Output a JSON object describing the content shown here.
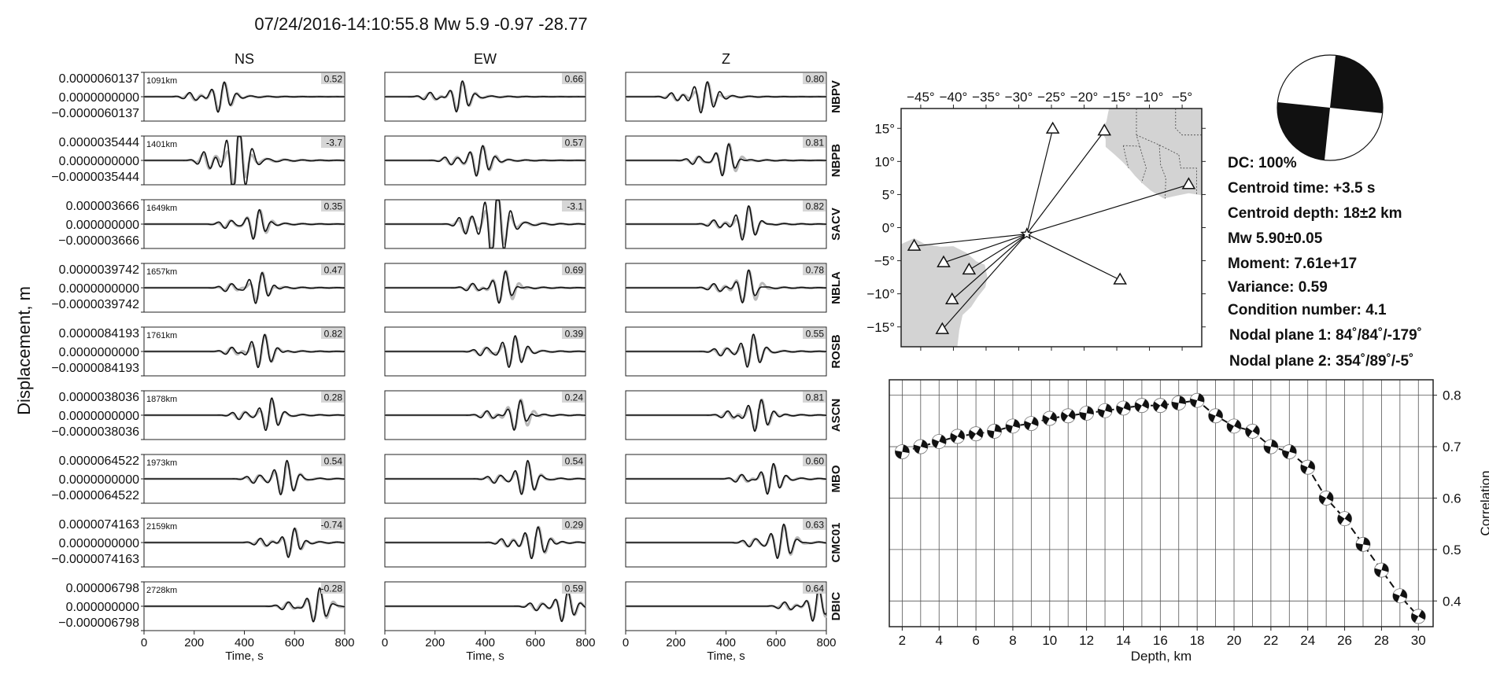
{
  "title": "07/24/2016-14:10:55.8 Mw 5.9 -0.97 -28.77",
  "waveforms": {
    "ylabel": "Displacement, m",
    "xlabel": "Time, s",
    "xlim": [
      0,
      800
    ],
    "xticks": [
      "0",
      "200",
      "400",
      "600",
      "800"
    ],
    "components": [
      "NS",
      "EW",
      "Z"
    ],
    "legend": "observed (gray) vs synthetic (black)",
    "stations": [
      {
        "name": "NBPV",
        "distance": "1091km",
        "yticks": [
          "0.0000060137",
          "0.0000000000",
          "−0.0000060137"
        ],
        "corr": [
          "0.52",
          "0.66",
          "0.80"
        ],
        "arrival_s": [
          310,
          300,
          315
        ]
      },
      {
        "name": "NBPB",
        "distance": "1401km",
        "yticks": [
          "0.0000035444",
          "0.0000000000",
          "−0.0000035444"
        ],
        "corr": [
          "-3.7",
          "0.57",
          "0.81"
        ],
        "arrival_s": [
          370,
          380,
          400
        ]
      },
      {
        "name": "SACV",
        "distance": "1649km",
        "yticks": [
          "0.000003666",
          "0.000000000",
          "−0.000003666"
        ],
        "corr": [
          "0.35",
          "-3.1",
          "0.82"
        ],
        "arrival_s": [
          450,
          440,
          480
        ]
      },
      {
        "name": "NBLA",
        "distance": "1657km",
        "yticks": [
          "0.0000039742",
          "0.0000000000",
          "−0.0000039742"
        ],
        "corr": [
          "0.47",
          "0.69",
          "0.78"
        ],
        "arrival_s": [
          460,
          470,
          480
        ]
      },
      {
        "name": "ROSB",
        "distance": "1761km",
        "yticks": [
          "0.0000084193",
          "0.0000000000",
          "−0.0000084193"
        ],
        "corr": [
          "0.82",
          "0.39",
          "0.55"
        ],
        "arrival_s": [
          470,
          510,
          500
        ]
      },
      {
        "name": "ASCN",
        "distance": "1878km",
        "yticks": [
          "0.0000038036",
          "0.0000000000",
          "−0.0000038036"
        ],
        "corr": [
          "0.28",
          "0.24",
          "0.81"
        ],
        "arrival_s": [
          500,
          530,
          530
        ]
      },
      {
        "name": "MBO",
        "distance": "1973km",
        "yticks": [
          "0.0000064522",
          "0.0000000000",
          "−0.0000064522"
        ],
        "corr": [
          "0.54",
          "0.54",
          "0.60"
        ],
        "arrival_s": [
          560,
          560,
          580
        ]
      },
      {
        "name": "CMC01",
        "distance": "2159km",
        "yticks": [
          "0.0000074163",
          "0.0000000000",
          "−0.0000074163"
        ],
        "corr": [
          "-0.74",
          "0.29",
          "0.63"
        ],
        "arrival_s": [
          590,
          600,
          620
        ]
      },
      {
        "name": "DBIC",
        "distance": "2728km",
        "yticks": [
          "0.000006798",
          "0.000000000",
          "−0.000006798"
        ],
        "corr": [
          "-0.28",
          "0.59",
          "0.64"
        ],
        "arrival_s": [
          690,
          720,
          760
        ]
      }
    ]
  },
  "map": {
    "xticks": [
      "−45°",
      "−40°",
      "−35°",
      "−30°",
      "−25°",
      "−20°",
      "−15°",
      "−10°",
      "−5°"
    ],
    "yticks": [
      "15°",
      "10°",
      "5°",
      "0°",
      "−5°",
      "−10°",
      "−15°"
    ],
    "xrange": [
      -48,
      -2
    ],
    "yrange": [
      -18,
      18
    ],
    "epicenter": {
      "lon": -28.77,
      "lat": -0.97
    },
    "stations": [
      {
        "lon": -24.8,
        "lat": 14.9
      },
      {
        "lon": -16.9,
        "lat": 14.6
      },
      {
        "lon": -4.0,
        "lat": 6.5
      },
      {
        "lon": -14.5,
        "lat": -7.9
      },
      {
        "lon": -46.0,
        "lat": -2.8
      },
      {
        "lon": -41.5,
        "lat": -5.3
      },
      {
        "lon": -37.6,
        "lat": -6.4
      },
      {
        "lon": -40.2,
        "lat": -10.9
      },
      {
        "lon": -41.7,
        "lat": -15.4
      }
    ]
  },
  "solution": {
    "dc": "DC: 100%",
    "centroid_time": "Centroid time: +3.5 s",
    "centroid_depth": "Centroid depth: 18±2 km",
    "mw": "Mw 5.90±0.05",
    "moment": "Moment: 7.61e+17",
    "variance": "Variance: 0.59",
    "condition": "Condition number: 4.1",
    "np1": "Nodal plane 1: 84˚/84˚/-179˚",
    "np2": "Nodal plane 2: 354˚/89˚/-5˚"
  },
  "chart_data": {
    "type": "scatter",
    "title": "",
    "xlabel": "Depth, km",
    "ylabel": "Correlation",
    "xlim": [
      1.3,
      30.8
    ],
    "ylim": [
      0.35,
      0.83
    ],
    "xticks": [
      "2",
      "4",
      "6",
      "8",
      "10",
      "12",
      "14",
      "16",
      "18",
      "20",
      "22",
      "24",
      "26",
      "28",
      "30"
    ],
    "yticks": [
      "0.4",
      "0.5",
      "0.6",
      "0.7",
      "0.8"
    ],
    "grid": true,
    "x": [
      2,
      3,
      4,
      5,
      6,
      7,
      8,
      9,
      10,
      11,
      12,
      13,
      14,
      15,
      16,
      17,
      18,
      19,
      20,
      21,
      22,
      23,
      24,
      25,
      26,
      27,
      28,
      29,
      30
    ],
    "y": [
      0.69,
      0.7,
      0.71,
      0.72,
      0.725,
      0.73,
      0.74,
      0.745,
      0.755,
      0.76,
      0.765,
      0.77,
      0.775,
      0.78,
      0.78,
      0.785,
      0.79,
      0.76,
      0.74,
      0.73,
      0.7,
      0.69,
      0.66,
      0.6,
      0.56,
      0.51,
      0.46,
      0.41,
      0.37
    ]
  }
}
